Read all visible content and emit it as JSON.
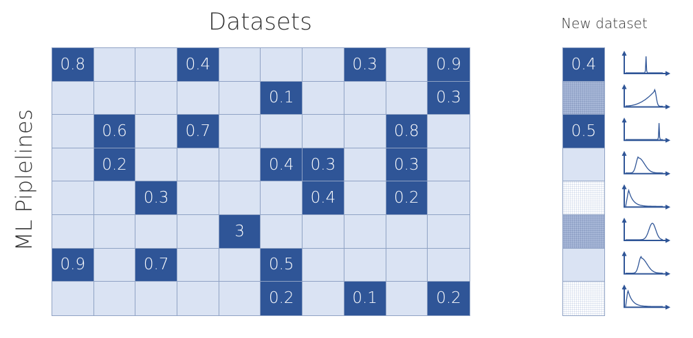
{
  "title": "Datasets",
  "ylabel": "ML Piplelines",
  "new_dataset_title": "New dataset",
  "colors": {
    "filled": "#2f5597",
    "empty": "#dae3f3",
    "grid": "#8fa2c4",
    "curve": "#2f5597"
  },
  "matrix": [
    [
      "0.8",
      "",
      "",
      "0.4",
      "",
      "",
      "",
      "0.3",
      "",
      "0.9"
    ],
    [
      "",
      "",
      "",
      "",
      "",
      "0.1",
      "",
      "",
      "",
      "0.3"
    ],
    [
      "",
      "0.6",
      "",
      "0.7",
      "",
      "",
      "",
      "",
      "0.8",
      ""
    ],
    [
      "",
      "0.2",
      "",
      "",
      "",
      "0.4",
      "0.3",
      "",
      "0.3",
      ""
    ],
    [
      "",
      "",
      "0.3",
      "",
      "",
      "",
      "0.4",
      "",
      "0.2",
      ""
    ],
    [
      "",
      "",
      "",
      "",
      "3",
      "",
      "",
      "",
      "",
      ""
    ],
    [
      "0.9",
      "",
      "0.7",
      "",
      "",
      "0.5",
      "",
      "",
      "",
      ""
    ],
    [
      "",
      "",
      "",
      "",
      "",
      "0.2",
      "",
      "0.1",
      "",
      "0.2"
    ]
  ],
  "new_dataset": [
    {
      "value": "0.4",
      "style": "filled"
    },
    {
      "value": "",
      "style": "dotted"
    },
    {
      "value": "0.5",
      "style": "filled"
    },
    {
      "value": "",
      "style": "empty"
    },
    {
      "value": "",
      "style": "faint"
    },
    {
      "value": "",
      "style": "dotted"
    },
    {
      "value": "",
      "style": "empty"
    },
    {
      "value": "",
      "style": "faint"
    }
  ],
  "distributions": [
    {
      "shape": "spike",
      "peak": 0.55
    },
    {
      "shape": "skew-right",
      "peak": 0.78
    },
    {
      "shape": "spike",
      "peak": 0.9
    },
    {
      "shape": "skew-left",
      "peak": 0.35
    },
    {
      "shape": "decay",
      "peak": 0.08
    },
    {
      "shape": "bell",
      "peak": 0.72
    },
    {
      "shape": "skew-left",
      "peak": 0.42
    },
    {
      "shape": "decay",
      "peak": 0.06
    }
  ]
}
